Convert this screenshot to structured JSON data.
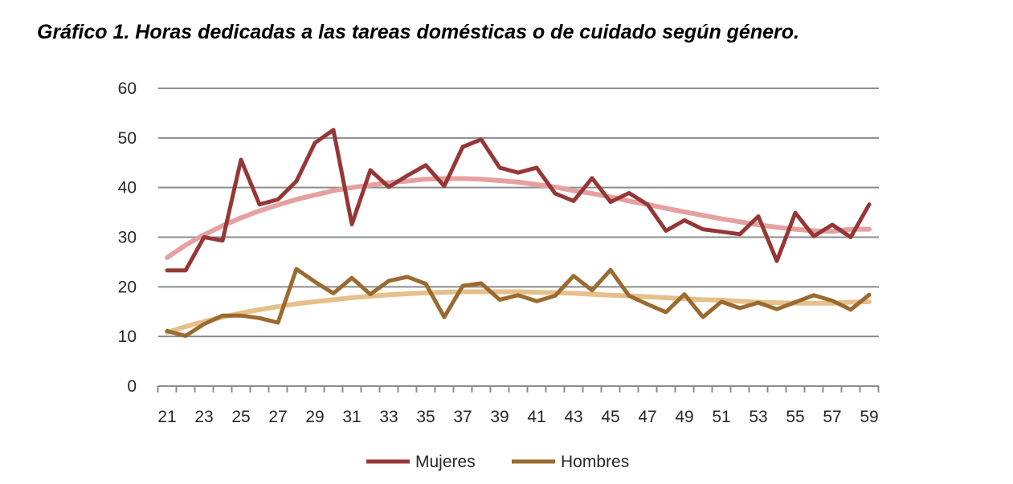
{
  "chart_data": {
    "type": "line",
    "title": "Gráfico 1. Horas dedicadas a las tareas domésticas o de cuidado según género.",
    "xlabel": "",
    "ylabel": "",
    "ylim": [
      0,
      60
    ],
    "yticks": [
      0,
      10,
      20,
      30,
      40,
      50,
      60
    ],
    "xlim": [
      21,
      59
    ],
    "xticks": [
      21,
      23,
      25,
      27,
      29,
      31,
      33,
      35,
      37,
      39,
      41,
      43,
      45,
      47,
      49,
      51,
      53,
      55,
      57,
      59
    ],
    "grid": true,
    "legend_position": "bottom",
    "x": [
      21,
      22,
      23,
      24,
      25,
      26,
      27,
      28,
      29,
      30,
      31,
      32,
      33,
      34,
      35,
      36,
      37,
      38,
      39,
      40,
      41,
      42,
      43,
      44,
      45,
      46,
      47,
      48,
      49,
      50,
      51,
      52,
      53,
      54,
      55,
      56,
      57,
      58,
      59
    ],
    "series": [
      {
        "name": "Mujeres",
        "color": "#953735",
        "values": [
          23.3,
          23.3,
          30.0,
          29.3,
          45.6,
          36.6,
          37.6,
          41.3,
          49.0,
          51.6,
          32.6,
          43.5,
          40.1,
          42.4,
          44.5,
          40.3,
          48.2,
          49.7,
          44.0,
          43.0,
          44.0,
          38.8,
          37.3,
          41.9,
          37.1,
          38.9,
          36.6,
          31.3,
          33.4,
          31.6,
          31.1,
          30.6,
          34.2,
          25.2,
          34.9,
          30.2,
          32.5,
          30.0,
          36.6
        ]
      },
      {
        "name": "Hombres",
        "color": "#9B6A2F",
        "values": [
          11.1,
          10.1,
          12.5,
          14.2,
          14.2,
          13.7,
          12.8,
          23.6,
          21.0,
          18.7,
          21.8,
          18.5,
          21.2,
          22.0,
          20.6,
          13.9,
          20.2,
          20.7,
          17.4,
          18.3,
          17.1,
          18.2,
          22.2,
          19.3,
          23.4,
          18.2,
          16.5,
          14.9,
          18.5,
          13.9,
          17.0,
          15.7,
          16.8,
          15.5,
          16.9,
          18.3,
          17.2,
          15.4,
          18.4
        ]
      },
      {
        "name": "",
        "color": "#E6A0A0",
        "trend": true,
        "values": [
          25.9,
          28.4,
          30.5,
          32.3,
          33.9,
          35.3,
          36.5,
          37.6,
          38.5,
          39.4,
          40.0,
          40.5,
          41.0,
          41.3,
          41.7,
          41.8,
          41.8,
          41.7,
          41.4,
          41.1,
          40.6,
          40.1,
          39.4,
          38.8,
          38.1,
          37.3,
          36.6,
          35.8,
          35.1,
          34.4,
          33.7,
          33.1,
          32.5,
          32.0,
          31.6,
          31.3,
          31.2,
          31.6,
          31.6
        ]
      },
      {
        "name": "",
        "color": "#E5C08A",
        "trend": true,
        "values": [
          10.8,
          12.0,
          13.0,
          13.9,
          14.7,
          15.4,
          16.0,
          16.6,
          17.0,
          17.4,
          17.8,
          18.1,
          18.4,
          18.6,
          18.8,
          18.9,
          19.0,
          19.0,
          19.0,
          19.0,
          18.9,
          18.8,
          18.7,
          18.5,
          18.3,
          18.2,
          18.0,
          17.8,
          17.6,
          17.4,
          17.3,
          17.1,
          16.9,
          16.8,
          16.7,
          16.7,
          16.7,
          16.9,
          17.0
        ]
      }
    ]
  }
}
